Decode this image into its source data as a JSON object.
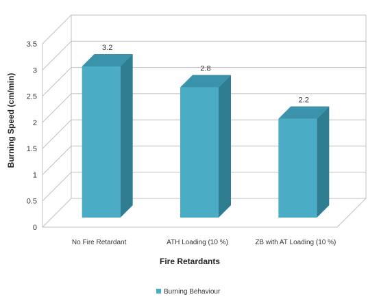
{
  "chart_data": {
    "type": "bar",
    "title": "",
    "xlabel": "Fire Retardants",
    "ylabel": "Burning Speed (cm/min)",
    "categories": [
      "No Fire Retardant",
      "ATH Loading (10 %)",
      "ZB with AT Loading (10 %)"
    ],
    "series": [
      {
        "name": "Burning Behaviour",
        "values": [
          3.2,
          2.8,
          2.2
        ],
        "labels": [
          "3.2",
          "2.8",
          "2.2"
        ]
      }
    ],
    "ylim": [
      0,
      3.5
    ],
    "yticks": [
      0,
      0.5,
      1,
      1.5,
      2,
      2.5,
      3,
      3.5
    ],
    "ytick_labels": [
      "0",
      "0.5",
      "1",
      "1.5",
      "2",
      "2.5",
      "3",
      "3.5"
    ],
    "grid": true,
    "legend_position": "bottom",
    "style": "3d-bar",
    "colors": {
      "front": "#4bacc6",
      "side": "#2e7d91",
      "top": "#3a93ab",
      "grid": "#bfbfbf"
    }
  }
}
